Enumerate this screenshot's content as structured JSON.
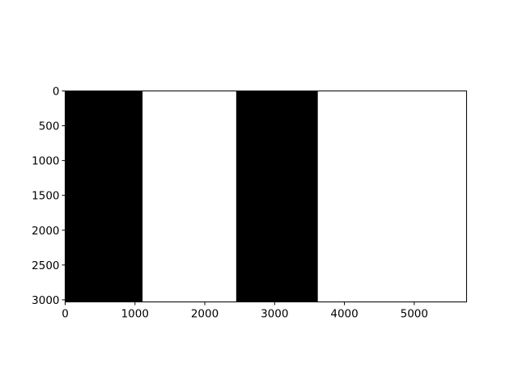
{
  "chart_data": {
    "type": "heatmap",
    "title": "",
    "xlabel": "",
    "ylabel": "",
    "xlim": [
      0,
      5750
    ],
    "ylim": [
      3030,
      0
    ],
    "y_inverted": true,
    "x_ticks": [
      0,
      1000,
      2000,
      3000,
      4000,
      5000
    ],
    "y_ticks": [
      0,
      500,
      1000,
      1500,
      2000,
      2500,
      3000
    ],
    "grid": false,
    "legend": "none",
    "colormap": "gray",
    "bands": [
      {
        "x_start": 0,
        "x_end": 1110,
        "value": "black",
        "color": "#000000"
      },
      {
        "x_start": 1110,
        "x_end": 2450,
        "value": "white",
        "color": "#ffffff"
      },
      {
        "x_start": 2450,
        "x_end": 3620,
        "value": "black",
        "color": "#000000"
      },
      {
        "x_start": 3620,
        "x_end": 5750,
        "value": "white",
        "color": "#ffffff"
      }
    ]
  }
}
